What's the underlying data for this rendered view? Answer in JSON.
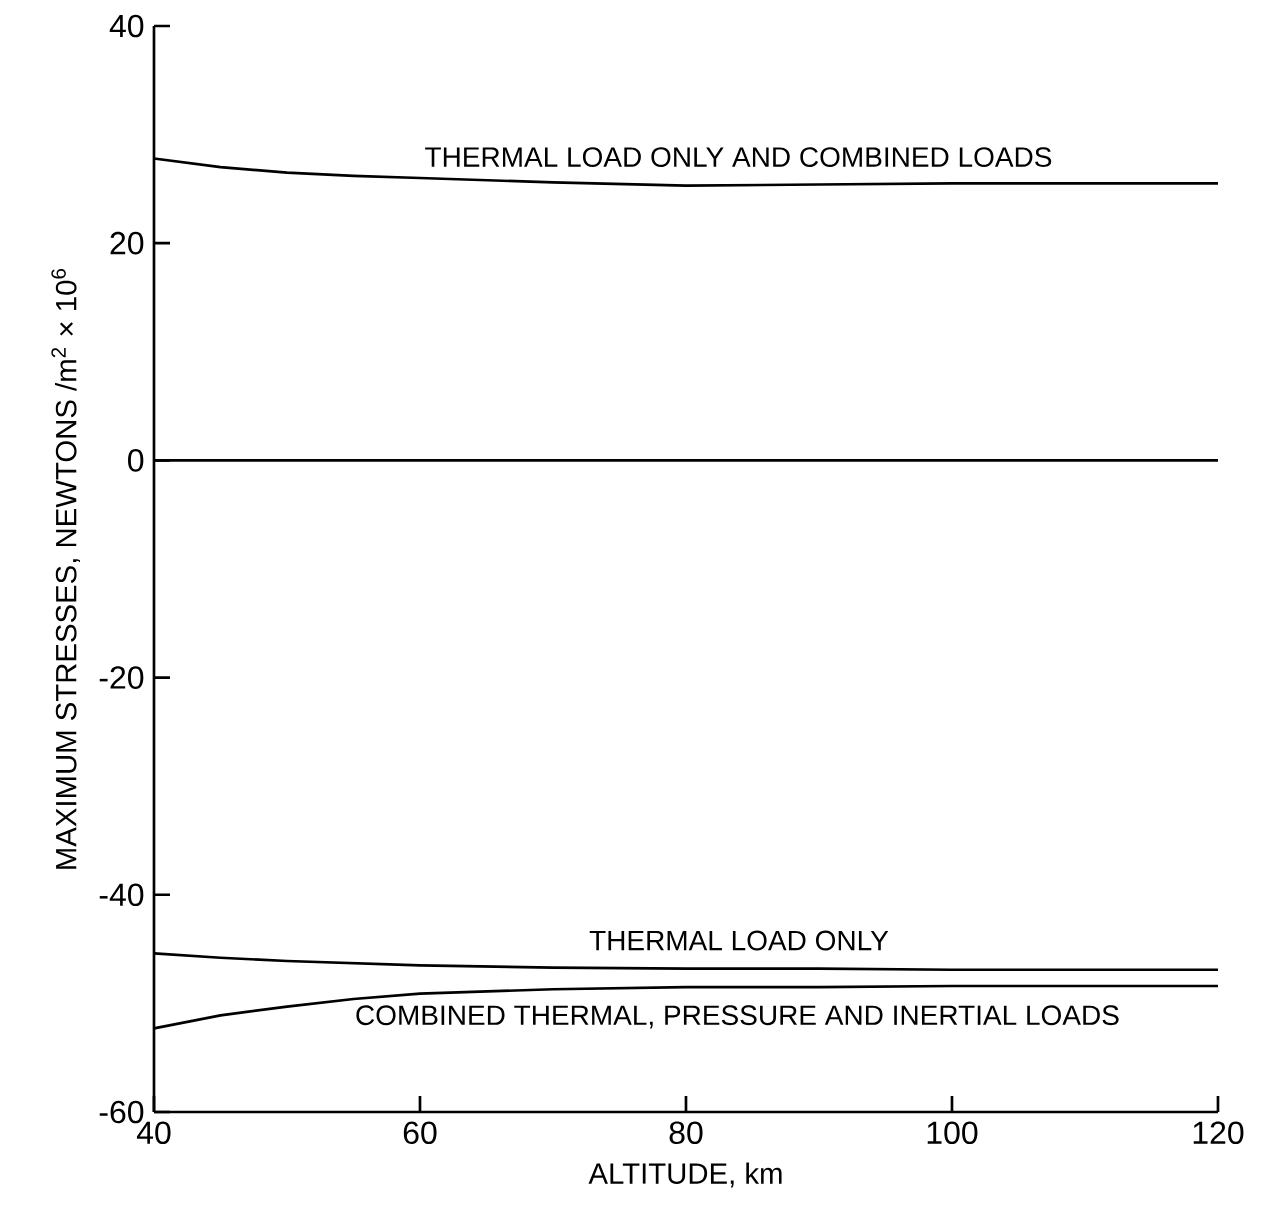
{
  "chart_data": {
    "type": "line",
    "xlabel": "ALTITUDE, km",
    "ylabel": "MAXIMUM STRESSES, NEWTONS /m$^{2}$ × 10$^{6}$",
    "xlim": [
      40,
      120
    ],
    "ylim": [
      -60,
      40
    ],
    "xticks": [
      40,
      60,
      80,
      100,
      120
    ],
    "yticks": [
      -60,
      -40,
      -20,
      0,
      20,
      40
    ],
    "marker": "none",
    "line_style": "solid",
    "ref_lines": [
      {
        "axis": "y",
        "value": 0
      }
    ],
    "series": [
      {
        "name": "THERMAL LOAD ONLY AND COMBINED LOADS",
        "color": "#000000",
        "x": [
          40,
          45,
          50,
          55,
          60,
          70,
          80,
          90,
          100,
          110,
          120
        ],
        "values": [
          27.8,
          27.0,
          26.5,
          26.2,
          26.0,
          25.6,
          25.3,
          25.4,
          25.5,
          25.5,
          25.5
        ]
      },
      {
        "name": "THERMAL LOAD ONLY",
        "color": "#000000",
        "x": [
          40,
          45,
          50,
          55,
          60,
          70,
          80,
          90,
          100,
          110,
          120
        ],
        "values": [
          -45.4,
          -45.8,
          -46.1,
          -46.3,
          -46.5,
          -46.7,
          -46.8,
          -46.8,
          -46.9,
          -46.9,
          -46.9
        ]
      },
      {
        "name": "COMBINED THERMAL, PRESSURE AND INERTIAL LOADS",
        "color": "#000000",
        "x": [
          40,
          45,
          50,
          55,
          60,
          70,
          80,
          90,
          100,
          110,
          120
        ],
        "values": [
          -52.3,
          -51.1,
          -50.3,
          -49.6,
          -49.1,
          -48.7,
          -48.5,
          -48.5,
          -48.4,
          -48.4,
          -48.4
        ]
      }
    ]
  }
}
